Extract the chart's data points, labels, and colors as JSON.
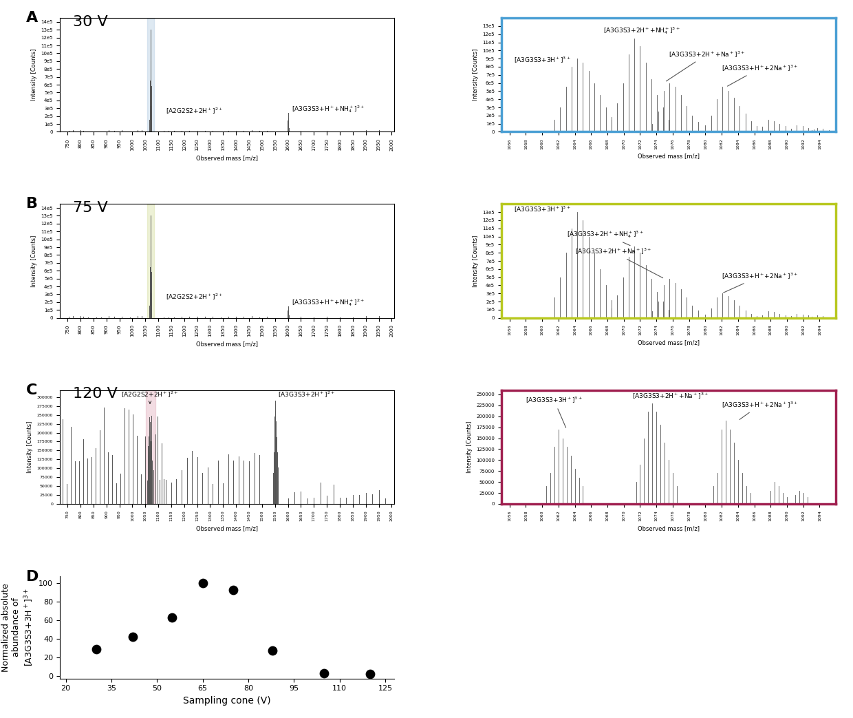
{
  "panel_labels": [
    "A",
    "B",
    "C",
    "D"
  ],
  "voltages": [
    "30 V",
    "75 V",
    "120 V"
  ],
  "highlight_colors": [
    "#adc9e0",
    "#d4dc9a",
    "#e0a8b8"
  ],
  "box_colors": [
    "#4a9fd4",
    "#b8c820",
    "#a02050"
  ],
  "scatter_x": [
    30,
    42,
    55,
    65,
    75,
    88,
    105,
    120
  ],
  "scatter_y": [
    29,
    42,
    63,
    100,
    93,
    27,
    3,
    2
  ],
  "scatter_xlabel": "Sampling cone (V)",
  "scatter_ylabel": "Normalized absolute\nabundance of\n[A3G3S3+3H+]3+",
  "wide_xlim": [
    720,
    2010
  ],
  "zoom_xlim_AB": [
    1055,
    1096
  ],
  "zoom_xlim_C": [
    1055,
    1096
  ]
}
